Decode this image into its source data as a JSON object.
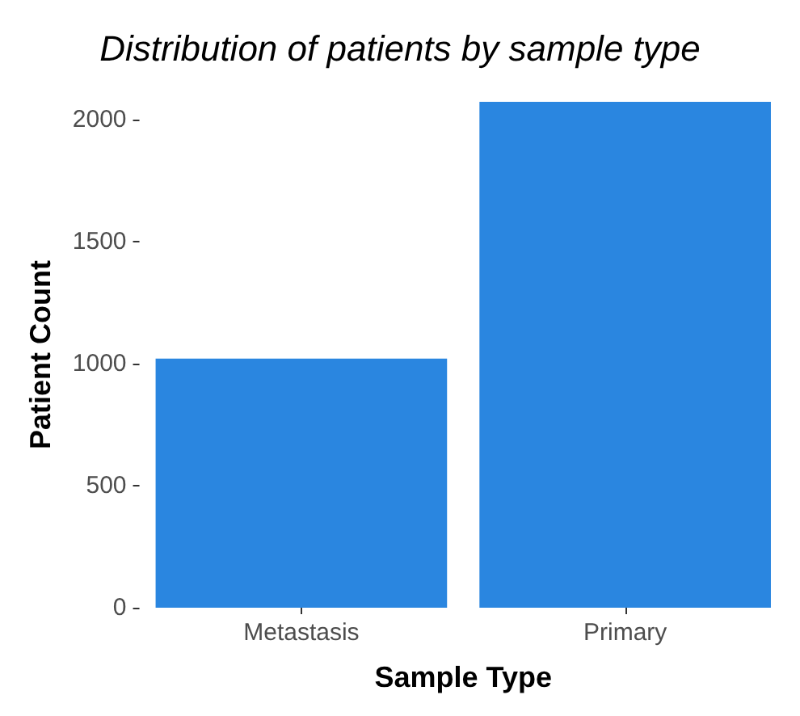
{
  "chart_data": {
    "type": "bar",
    "title": "Distribution of patients by sample type",
    "xlabel": "Sample Type",
    "ylabel": "Patient Count",
    "categories": [
      "Metastasis",
      "Primary"
    ],
    "series": [
      {
        "color": "#2a86e0",
        "values": [
          1021,
          2074
        ]
      }
    ],
    "ylim": [
      0,
      2074
    ],
    "yticks": [
      0,
      500,
      1000,
      1500,
      2000
    ],
    "grid": false
  }
}
